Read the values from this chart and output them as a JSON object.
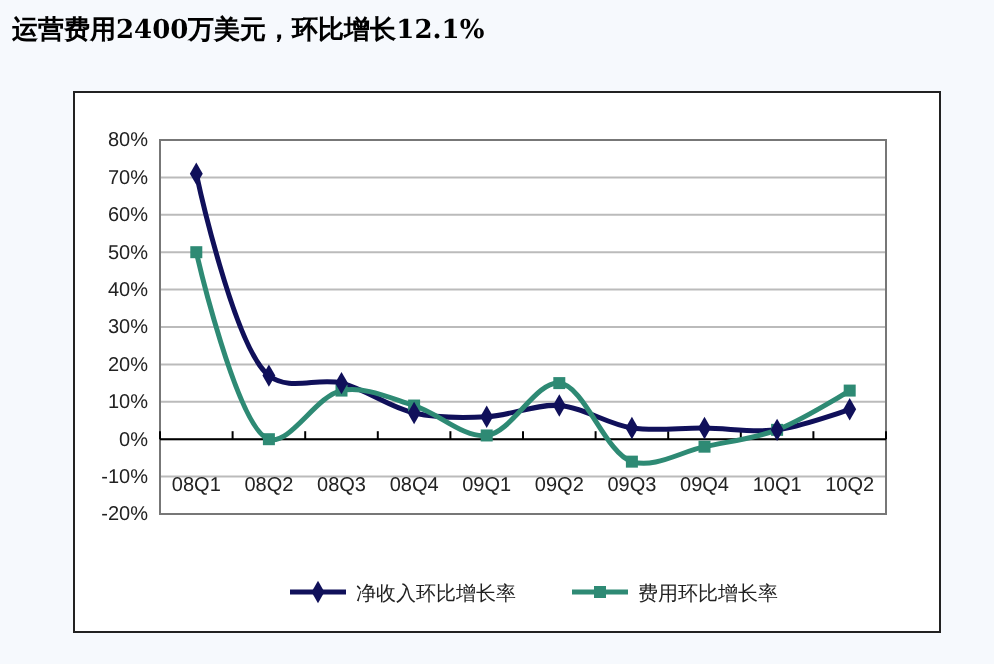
{
  "chart_data": {
    "type": "line",
    "title": "运营费用2400万美元，环比增长12.1%",
    "categories": [
      "08Q1",
      "08Q2",
      "08Q3",
      "08Q4",
      "09Q1",
      "09Q2",
      "09Q3",
      "09Q4",
      "10Q1",
      "10Q2"
    ],
    "series": [
      {
        "name": "净收入环比增长率",
        "color": "#10105a",
        "marker": "diamond",
        "values": [
          71,
          17,
          15,
          7,
          6,
          9,
          3,
          3,
          2.5,
          8
        ]
      },
      {
        "name": "费用环比增长率",
        "color": "#2e8a74",
        "marker": "square",
        "values": [
          50,
          0,
          13,
          9,
          1,
          15,
          -6,
          -2,
          2.5,
          13
        ]
      }
    ],
    "ylim": [
      -20,
      80
    ],
    "yticks": [
      {
        "value": -20,
        "label": "-20%"
      },
      {
        "value": -10,
        "label": "-10%"
      },
      {
        "value": 0,
        "label": "0%"
      },
      {
        "value": 10,
        "label": "10%"
      },
      {
        "value": 20,
        "label": "20%"
      },
      {
        "value": 30,
        "label": "30%"
      },
      {
        "value": 40,
        "label": "40%"
      },
      {
        "value": 50,
        "label": "50%"
      },
      {
        "value": 60,
        "label": "60%"
      },
      {
        "value": 70,
        "label": "70%"
      },
      {
        "value": 80,
        "label": "80%"
      }
    ],
    "grid": "y",
    "legend": "bottom",
    "line_style": "solid"
  }
}
